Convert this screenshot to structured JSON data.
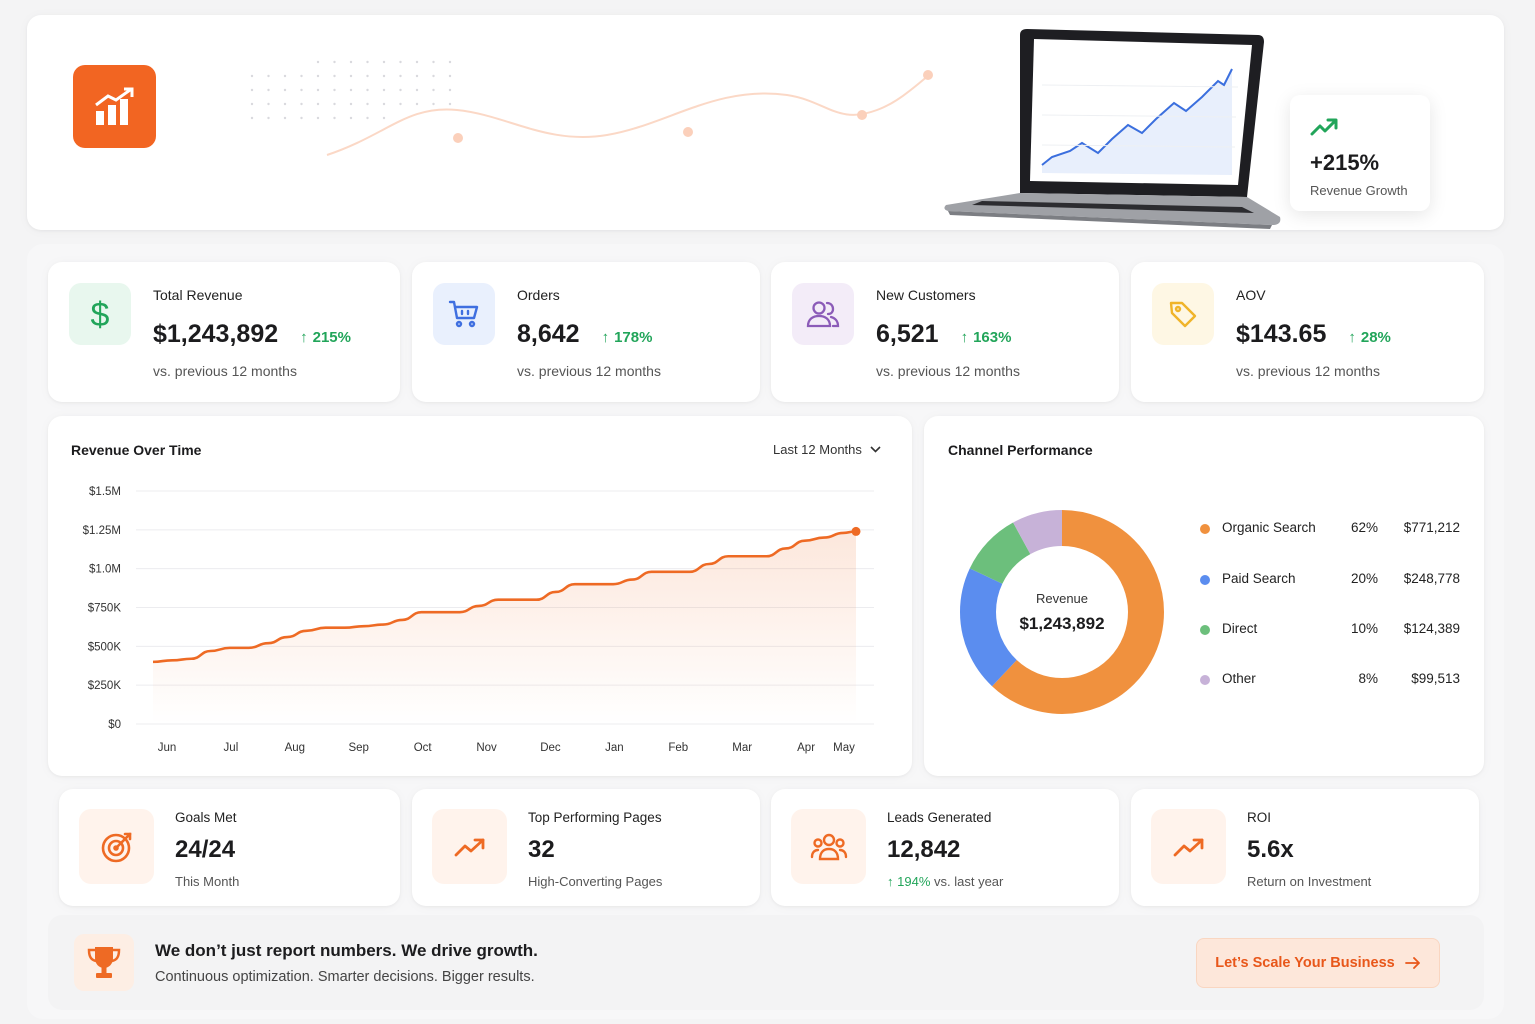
{
  "hero": {
    "growth_value": "+215%",
    "growth_label": "Revenue Growth"
  },
  "kpis": [
    {
      "title": "Total Revenue",
      "value": "$1,243,892",
      "delta": "215%",
      "sub": "vs. previous 12 months",
      "icon": "dollar-icon",
      "icon_color": "#22a55a",
      "tile_color": "#e8f7ee"
    },
    {
      "title": "Orders",
      "value": "8,642",
      "delta": "178%",
      "sub": "vs. previous 12 months",
      "icon": "cart-icon",
      "icon_color": "#3f6fe0",
      "tile_color": "#e9f0fd"
    },
    {
      "title": "New Customers",
      "value": "6,521",
      "delta": "163%",
      "sub": "vs. previous 12 months",
      "icon": "users-icon",
      "icon_color": "#8b5bb8",
      "tile_color": "#f3ecf8"
    },
    {
      "title": "AOV",
      "value": "$143.65",
      "delta": "28%",
      "sub": "vs. previous 12 months",
      "icon": "tag-icon",
      "icon_color": "#f0b429",
      "tile_color": "#fef7e4"
    }
  ],
  "revenue_chart": {
    "title": "Revenue Over Time",
    "range_label": "Last 12 Months"
  },
  "chart_data": {
    "type": "area",
    "x": [
      "Jun",
      "Jul",
      "Aug",
      "Sep",
      "Oct",
      "Nov",
      "Dec",
      "Jan",
      "Feb",
      "Mar",
      "Apr",
      "May"
    ],
    "y_ticks": [
      "$0",
      "$250K",
      "$500K",
      "$750K",
      "$1.0M",
      "$1.25M",
      "$1.5M"
    ],
    "ylim": [
      0,
      1500000
    ],
    "grid": true,
    "series_color": "#ee6a24",
    "points": [
      [
        0.0,
        400000
      ],
      [
        0.3,
        410000
      ],
      [
        0.6,
        420000
      ],
      [
        0.9,
        470000
      ],
      [
        1.2,
        490000
      ],
      [
        1.5,
        490000
      ],
      [
        1.8,
        520000
      ],
      [
        2.1,
        560000
      ],
      [
        2.4,
        600000
      ],
      [
        2.7,
        620000
      ],
      [
        3.0,
        620000
      ],
      [
        3.3,
        630000
      ],
      [
        3.6,
        640000
      ],
      [
        3.9,
        670000
      ],
      [
        4.2,
        720000
      ],
      [
        4.5,
        720000
      ],
      [
        4.8,
        720000
      ],
      [
        5.1,
        760000
      ],
      [
        5.4,
        800000
      ],
      [
        5.7,
        800000
      ],
      [
        6.0,
        800000
      ],
      [
        6.3,
        850000
      ],
      [
        6.6,
        900000
      ],
      [
        6.9,
        900000
      ],
      [
        7.2,
        900000
      ],
      [
        7.5,
        930000
      ],
      [
        7.8,
        980000
      ],
      [
        8.1,
        980000
      ],
      [
        8.4,
        980000
      ],
      [
        8.7,
        1030000
      ],
      [
        9.0,
        1080000
      ],
      [
        9.3,
        1080000
      ],
      [
        9.6,
        1080000
      ],
      [
        9.9,
        1130000
      ],
      [
        10.2,
        1180000
      ],
      [
        10.5,
        1200000
      ],
      [
        10.8,
        1230000
      ],
      [
        11.0,
        1240000
      ]
    ]
  },
  "channel": {
    "title": "Channel Performance",
    "center_label": "Revenue",
    "center_value": "$1,243,892",
    "items": [
      {
        "name": "Organic Search",
        "pct": "62%",
        "value": 62,
        "amount": "$771,212",
        "color": "#f0913e"
      },
      {
        "name": "Paid Search",
        "pct": "20%",
        "value": 20,
        "amount": "$248,778",
        "color": "#5b8def"
      },
      {
        "name": "Direct",
        "pct": "10%",
        "value": 10,
        "amount": "$124,389",
        "color": "#6cbf7c"
      },
      {
        "name": "Other",
        "pct": "8%",
        "value": 8,
        "amount": "$99,513",
        "color": "#c7b2d8"
      }
    ]
  },
  "stats": [
    {
      "title": "Goals Met",
      "value": "24/24",
      "sub": "This Month",
      "icon": "target-icon"
    },
    {
      "title": "Top Performing Pages",
      "value": "32",
      "sub": "High-Converting Pages",
      "icon": "trend-up-icon"
    },
    {
      "title": "Leads Generated",
      "value": "12,842",
      "sub_delta": "194%",
      "sub": "vs. last year",
      "icon": "group-icon"
    },
    {
      "title": "ROI",
      "value": "5.6x",
      "sub": "Return on Investment",
      "icon": "trend-up-icon"
    }
  ],
  "cta": {
    "headline": "We don’t just report numbers. We drive growth.",
    "sub": "Continuous optimization. Smarter decisions. Bigger results.",
    "button_label": "Let’s Scale Your Business"
  },
  "colors": {
    "accent": "#f26522",
    "positive": "#22a55a"
  }
}
